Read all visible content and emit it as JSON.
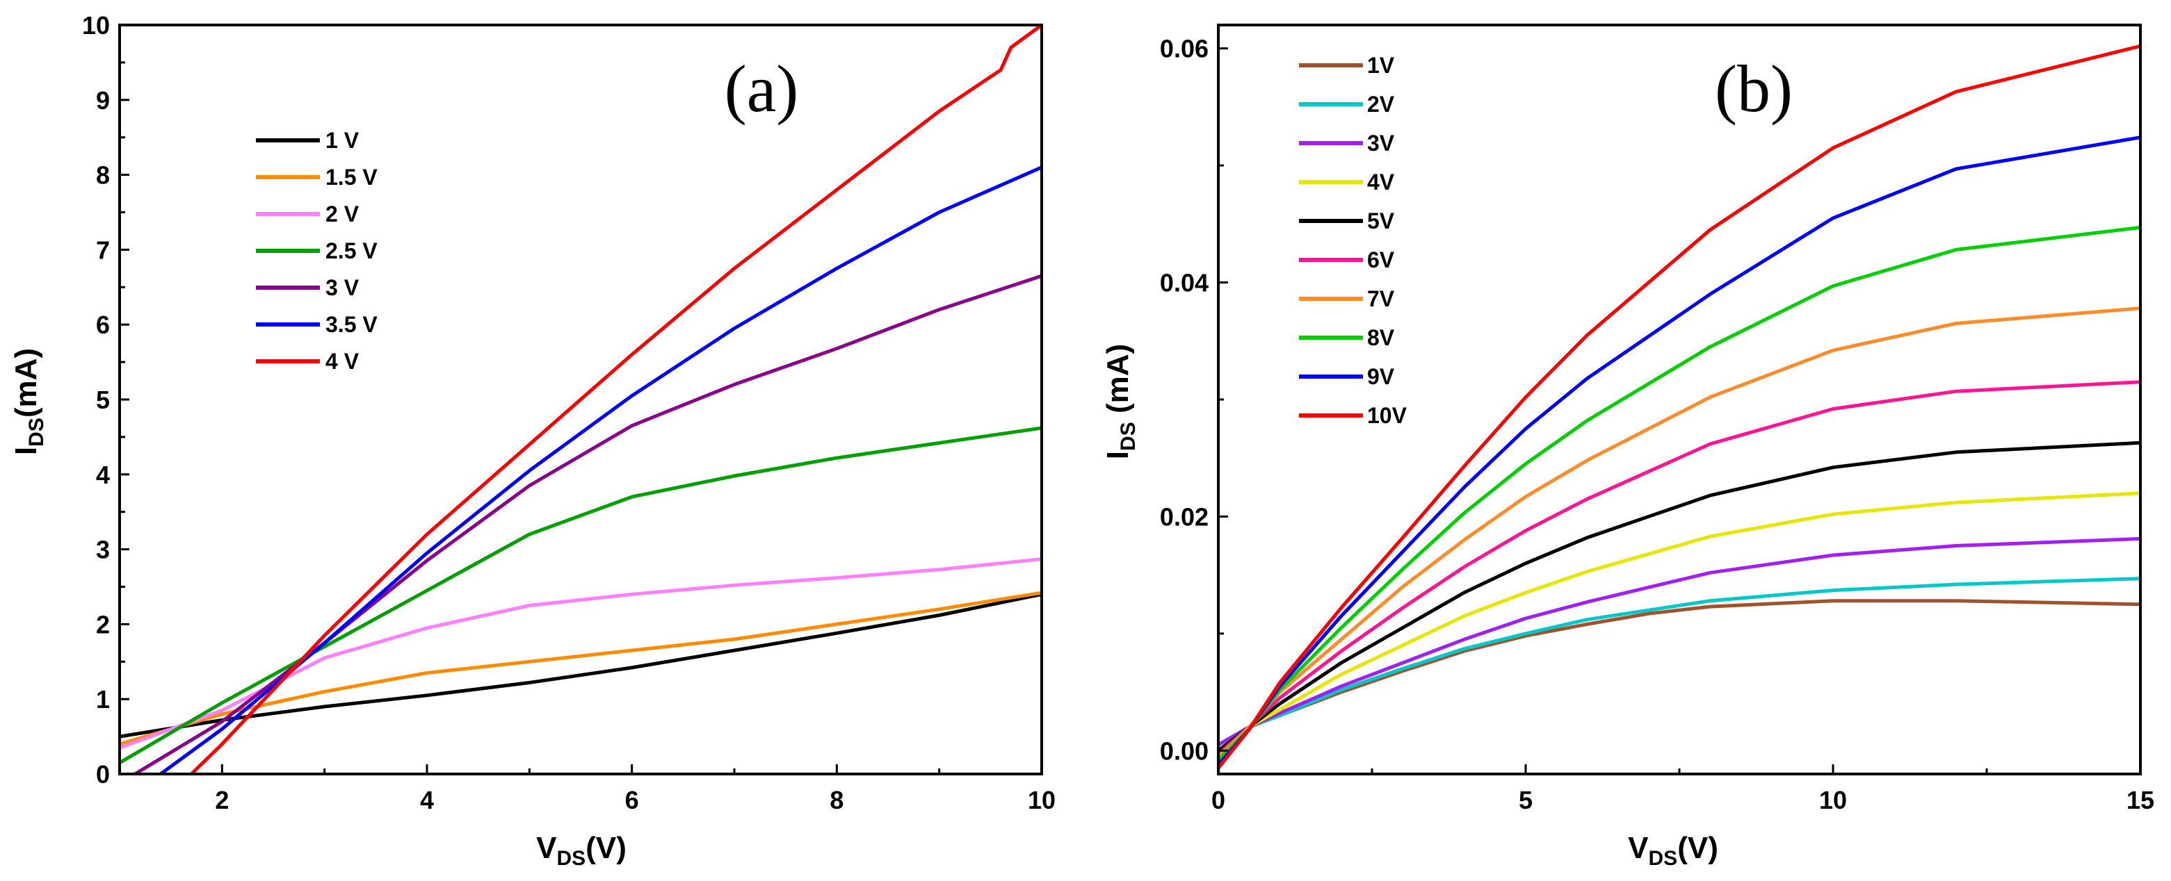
{
  "chart_data": [
    {
      "type": "line",
      "panel_label": "(a)",
      "xlabel_main": "V",
      "xlabel_sub": "DS",
      "xlabel_tail": "(V)",
      "ylabel_main": "I",
      "ylabel_sub": "DS",
      "ylabel_tail": "(mA)",
      "xlim": [
        1,
        10
      ],
      "ylim": [
        0,
        10
      ],
      "xticks": [
        2,
        4,
        6,
        8,
        10
      ],
      "yticks": [
        0,
        1,
        2,
        3,
        4,
        5,
        6,
        7,
        8,
        9,
        10
      ],
      "legend_position": "upper-left",
      "series": [
        {
          "name": "1 V",
          "color": "#000000",
          "x": [
            1,
            2,
            3,
            4,
            5,
            6,
            7,
            8,
            9,
            10
          ],
          "y": [
            0.5,
            0.72,
            0.9,
            1.05,
            1.22,
            1.42,
            1.65,
            1.88,
            2.12,
            2.4
          ]
        },
        {
          "name": "1.5 V",
          "color": "#ff8c00",
          "x": [
            1,
            2,
            3,
            4,
            5,
            6,
            7,
            8,
            9,
            10
          ],
          "y": [
            0.4,
            0.8,
            1.1,
            1.35,
            1.5,
            1.65,
            1.8,
            2.0,
            2.2,
            2.42
          ]
        },
        {
          "name": "2 V",
          "color": "#ff80ff",
          "x": [
            1,
            2,
            3,
            4,
            5,
            6,
            7,
            8,
            9,
            10
          ],
          "y": [
            0.35,
            0.85,
            1.55,
            1.95,
            2.25,
            2.4,
            2.52,
            2.62,
            2.73,
            2.87
          ]
        },
        {
          "name": "2.5 V",
          "color": "#00a000",
          "x": [
            1,
            2,
            3,
            4,
            5,
            6,
            7,
            8,
            9,
            10
          ],
          "y": [
            0.15,
            0.95,
            1.7,
            2.45,
            3.2,
            3.7,
            3.98,
            4.22,
            4.42,
            4.62
          ]
        },
        {
          "name": "3 V",
          "color": "#8b008b",
          "x": [
            1.15,
            2,
            3,
            4,
            5,
            6,
            7,
            8,
            9,
            10
          ],
          "y": [
            0.0,
            0.7,
            1.75,
            2.85,
            3.85,
            4.65,
            5.2,
            5.68,
            6.2,
            6.65
          ]
        },
        {
          "name": "3.5 V",
          "color": "#0000ff",
          "x": [
            1.4,
            2,
            3,
            4,
            5,
            6,
            7,
            8,
            9,
            10
          ],
          "y": [
            0.0,
            0.6,
            1.75,
            2.95,
            4.05,
            5.05,
            5.95,
            6.75,
            7.5,
            8.1
          ]
        },
        {
          "name": "4 V",
          "color": "#ff0000",
          "x": [
            1.7,
            2,
            3,
            4,
            5,
            6,
            7,
            8,
            9,
            9.6,
            9.7,
            10
          ],
          "y": [
            0.0,
            0.4,
            1.85,
            3.2,
            4.4,
            5.6,
            6.75,
            7.8,
            8.85,
            9.4,
            9.7,
            10.0
          ]
        }
      ]
    },
    {
      "type": "line",
      "panel_label": "(b)",
      "xlabel_main": "V",
      "xlabel_sub": "DS",
      "xlabel_tail": "(V)",
      "ylabel_main": "I",
      "ylabel_sub": "DS",
      "ylabel_tail": " (mA)",
      "xlim": [
        0,
        15
      ],
      "ylim": [
        -0.002,
        0.062
      ],
      "xticks": [
        0,
        5,
        10,
        15
      ],
      "yticks": [
        0.0,
        0.02,
        0.04,
        0.06
      ],
      "ytick_labels": [
        "0.00",
        "0.02",
        "0.04",
        "0.06"
      ],
      "legend_position": "upper-left",
      "series": [
        {
          "name": "1V",
          "color": "#a0522d",
          "x": [
            0,
            0.5,
            1,
            2,
            3,
            4,
            5,
            6,
            7,
            8,
            10,
            12,
            15
          ],
          "y": [
            0.0005,
            0.002,
            0.003,
            0.005,
            0.0068,
            0.0085,
            0.0098,
            0.0108,
            0.0117,
            0.0123,
            0.0128,
            0.0128,
            0.0125
          ]
        },
        {
          "name": "2V",
          "color": "#00c8c8",
          "x": [
            0,
            0.5,
            1,
            2,
            3,
            4,
            5,
            6,
            8,
            10,
            12,
            15
          ],
          "y": [
            0.0005,
            0.002,
            0.003,
            0.0052,
            0.007,
            0.0087,
            0.01,
            0.0112,
            0.0128,
            0.0137,
            0.0142,
            0.0147
          ]
        },
        {
          "name": "3V",
          "color": "#a020f0",
          "x": [
            0,
            0.5,
            1,
            2,
            3,
            4,
            5,
            6,
            8,
            10,
            12,
            15
          ],
          "y": [
            0.0005,
            0.002,
            0.0032,
            0.0055,
            0.0075,
            0.0095,
            0.0113,
            0.0127,
            0.0152,
            0.0167,
            0.0175,
            0.0181
          ]
        },
        {
          "name": "4V",
          "color": "#e6e600",
          "x": [
            0,
            0.5,
            1,
            2,
            3,
            4,
            5,
            6,
            8,
            10,
            12,
            15
          ],
          "y": [
            0.0,
            0.002,
            0.0035,
            0.0065,
            0.009,
            0.0115,
            0.0135,
            0.0153,
            0.0183,
            0.0202,
            0.0212,
            0.022
          ]
        },
        {
          "name": "5V",
          "color": "#000000",
          "x": [
            0,
            0.5,
            1,
            2,
            3,
            4,
            5,
            6,
            8,
            10,
            12,
            15
          ],
          "y": [
            0.0,
            0.002,
            0.004,
            0.0075,
            0.0105,
            0.0135,
            0.016,
            0.0182,
            0.0218,
            0.0242,
            0.0255,
            0.0263
          ]
        },
        {
          "name": "6V",
          "color": "#ff1493",
          "x": [
            0,
            0.5,
            1,
            2,
            3,
            4,
            5,
            6,
            8,
            10,
            12,
            15
          ],
          "y": [
            -0.0003,
            0.002,
            0.0045,
            0.0085,
            0.0122,
            0.0157,
            0.0188,
            0.0215,
            0.0262,
            0.0292,
            0.0307,
            0.0315
          ]
        },
        {
          "name": "7V",
          "color": "#ff8c28",
          "x": [
            0,
            0.5,
            1,
            2,
            3,
            4,
            5,
            6,
            8,
            10,
            12,
            15
          ],
          "y": [
            -0.0005,
            0.002,
            0.005,
            0.0095,
            0.014,
            0.018,
            0.0217,
            0.0248,
            0.0302,
            0.0342,
            0.0365,
            0.0378
          ]
        },
        {
          "name": "8V",
          "color": "#00d000",
          "x": [
            0,
            0.5,
            1,
            2,
            3,
            4,
            5,
            6,
            8,
            10,
            12,
            15
          ],
          "y": [
            -0.0008,
            0.0018,
            0.0052,
            0.0105,
            0.0155,
            0.0203,
            0.0245,
            0.0282,
            0.0345,
            0.0397,
            0.0428,
            0.0447
          ]
        },
        {
          "name": "9V",
          "color": "#0000ff",
          "x": [
            0,
            0.5,
            1,
            2,
            3,
            4,
            5,
            6,
            8,
            10,
            12,
            15
          ],
          "y": [
            -0.0012,
            0.0018,
            0.0055,
            0.0115,
            0.017,
            0.0225,
            0.0275,
            0.0318,
            0.039,
            0.0455,
            0.0497,
            0.0524
          ]
        },
        {
          "name": "10V",
          "color": "#ff0000",
          "x": [
            0,
            0.5,
            1,
            2,
            3,
            4,
            5,
            6,
            8,
            10,
            12,
            15
          ],
          "y": [
            -0.0015,
            0.0018,
            0.0058,
            0.0122,
            0.0182,
            0.0243,
            0.0302,
            0.0355,
            0.0445,
            0.0515,
            0.0563,
            0.0602
          ]
        }
      ]
    }
  ]
}
